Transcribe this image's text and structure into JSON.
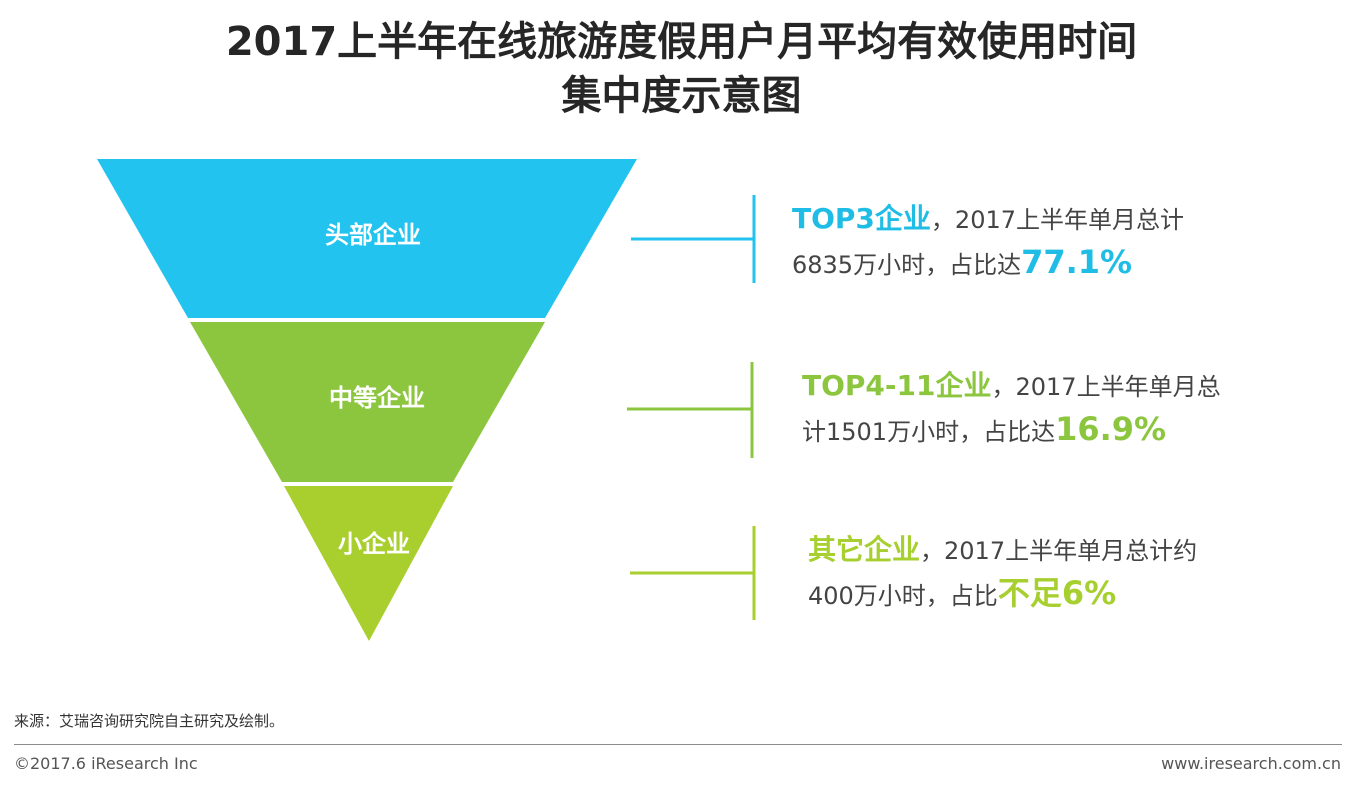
{
  "title": {
    "line1": "2017上半年在线旅游度假用户月平均有效使用时间",
    "line2": "集中度示意图"
  },
  "colors": {
    "top": "#22c3ef",
    "middle": "#8cc63f",
    "bottom": "#a9cf2f",
    "text_top": "#1fbde6",
    "text_middle": "#8cc63f",
    "text_bottom": "#a6cf2f"
  },
  "segments": [
    {
      "label": "头部企业",
      "name": "TOP3企业",
      "line1_rest": "，2017上半年单月总计",
      "line2_text": "6835万小时，占比达",
      "share": "77.1%"
    },
    {
      "label": "中等企业",
      "name": "TOP4-11企业",
      "line1_rest": "，2017上半年单月总",
      "line2_text": "计1501万小时，占比达",
      "share": "16.9%"
    },
    {
      "label": "小企业",
      "name": "其它企业",
      "line1_rest": "，2017上半年单月总计约",
      "line2_text": "400万小时，占比",
      "share": "不足6%"
    }
  ],
  "source": "来源：艾瑞咨询研究院自主研究及绘制。",
  "footer": {
    "copyright": "©2017.6 iResearch Inc",
    "website": "www.iresearch.com.cn"
  }
}
